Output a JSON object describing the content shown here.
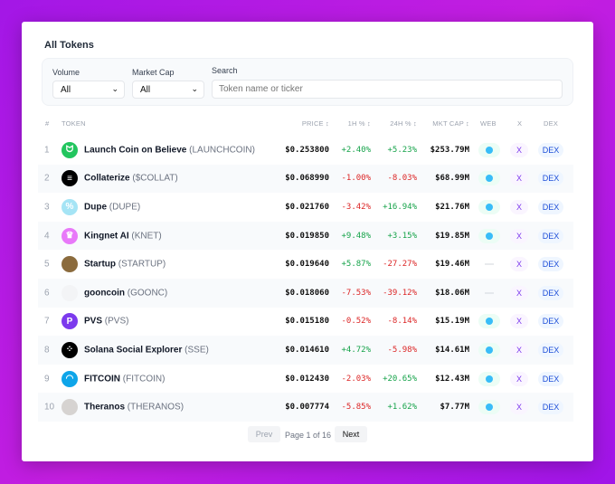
{
  "title": "All Tokens",
  "filters": {
    "volume_label": "Volume",
    "volume_value": "All",
    "mcap_label": "Market Cap",
    "mcap_value": "All",
    "search_label": "Search",
    "search_placeholder": "Token name or ticker"
  },
  "columns": {
    "num": "#",
    "token": "TOKEN",
    "price": "PRICE ↕",
    "h1": "1H % ↕",
    "h24": "24H % ↕",
    "mcap": "MKT CAP ↕",
    "web": "WEB",
    "x": "X",
    "dex": "DEX"
  },
  "rows": [
    {
      "n": "1",
      "name": "Launch Coin on Believe",
      "ticker": "(LAUNCHCOIN)",
      "price": "$0.253800",
      "h1": "+2.40%",
      "h24": "+5.23%",
      "mcap": "$253.79M",
      "web": true,
      "logo": "#22c55e",
      "glyph": "ᗢ"
    },
    {
      "n": "2",
      "name": "Collaterize",
      "ticker": "($COLLAT)",
      "price": "$0.068990",
      "h1": "-1.00%",
      "h24": "-8.03%",
      "mcap": "$68.99M",
      "web": true,
      "logo": "#000000",
      "glyph": "≡"
    },
    {
      "n": "3",
      "name": "Dupe",
      "ticker": "(DUPE)",
      "price": "$0.021760",
      "h1": "-3.42%",
      "h24": "+16.94%",
      "mcap": "$21.76M",
      "web": true,
      "logo": "#a5e4f5",
      "glyph": "%"
    },
    {
      "n": "4",
      "name": "Kingnet AI",
      "ticker": "(KNET)",
      "price": "$0.019850",
      "h1": "+9.48%",
      "h24": "+3.15%",
      "mcap": "$19.85M",
      "web": true,
      "logo": "#e879f9",
      "glyph": "♛"
    },
    {
      "n": "5",
      "name": "Startup",
      "ticker": "(STARTUP)",
      "price": "$0.019640",
      "h1": "+5.87%",
      "h24": "-27.27%",
      "mcap": "$19.46M",
      "web": false,
      "logo": "#8b6b3d",
      "glyph": ""
    },
    {
      "n": "6",
      "name": "gooncoin",
      "ticker": "(GOONC)",
      "price": "$0.018060",
      "h1": "-7.53%",
      "h24": "-39.12%",
      "mcap": "$18.06M",
      "web": false,
      "logo": "#f3f4f6",
      "glyph": ""
    },
    {
      "n": "7",
      "name": "PVS",
      "ticker": "(PVS)",
      "price": "$0.015180",
      "h1": "-0.52%",
      "h24": "-8.14%",
      "mcap": "$15.19M",
      "web": true,
      "logo": "#7c3aed",
      "glyph": "P"
    },
    {
      "n": "8",
      "name": "Solana Social Explorer",
      "ticker": "(SSE)",
      "price": "$0.014610",
      "h1": "+4.72%",
      "h24": "-5.98%",
      "mcap": "$14.61M",
      "web": true,
      "logo": "#000000",
      "glyph": "⁘"
    },
    {
      "n": "9",
      "name": "FITCOIN",
      "ticker": "(FITCOIN)",
      "price": "$0.012430",
      "h1": "-2.03%",
      "h24": "+20.65%",
      "mcap": "$12.43M",
      "web": true,
      "logo": "#0ea5e9",
      "glyph": "◠"
    },
    {
      "n": "10",
      "name": "Theranos",
      "ticker": "(THERANOS)",
      "price": "$0.007774",
      "h1": "-5.85%",
      "h24": "+1.62%",
      "mcap": "$7.77M",
      "web": true,
      "logo": "#d6d3d1",
      "glyph": ""
    }
  ],
  "x_label": "X",
  "dex_label": "DEX",
  "pager": {
    "prev": "Prev",
    "info": "Page 1 of 16",
    "next": "Next"
  },
  "colors": {
    "positive": "#16a34a",
    "negative": "#dc2626",
    "background": "#b01ee6"
  }
}
